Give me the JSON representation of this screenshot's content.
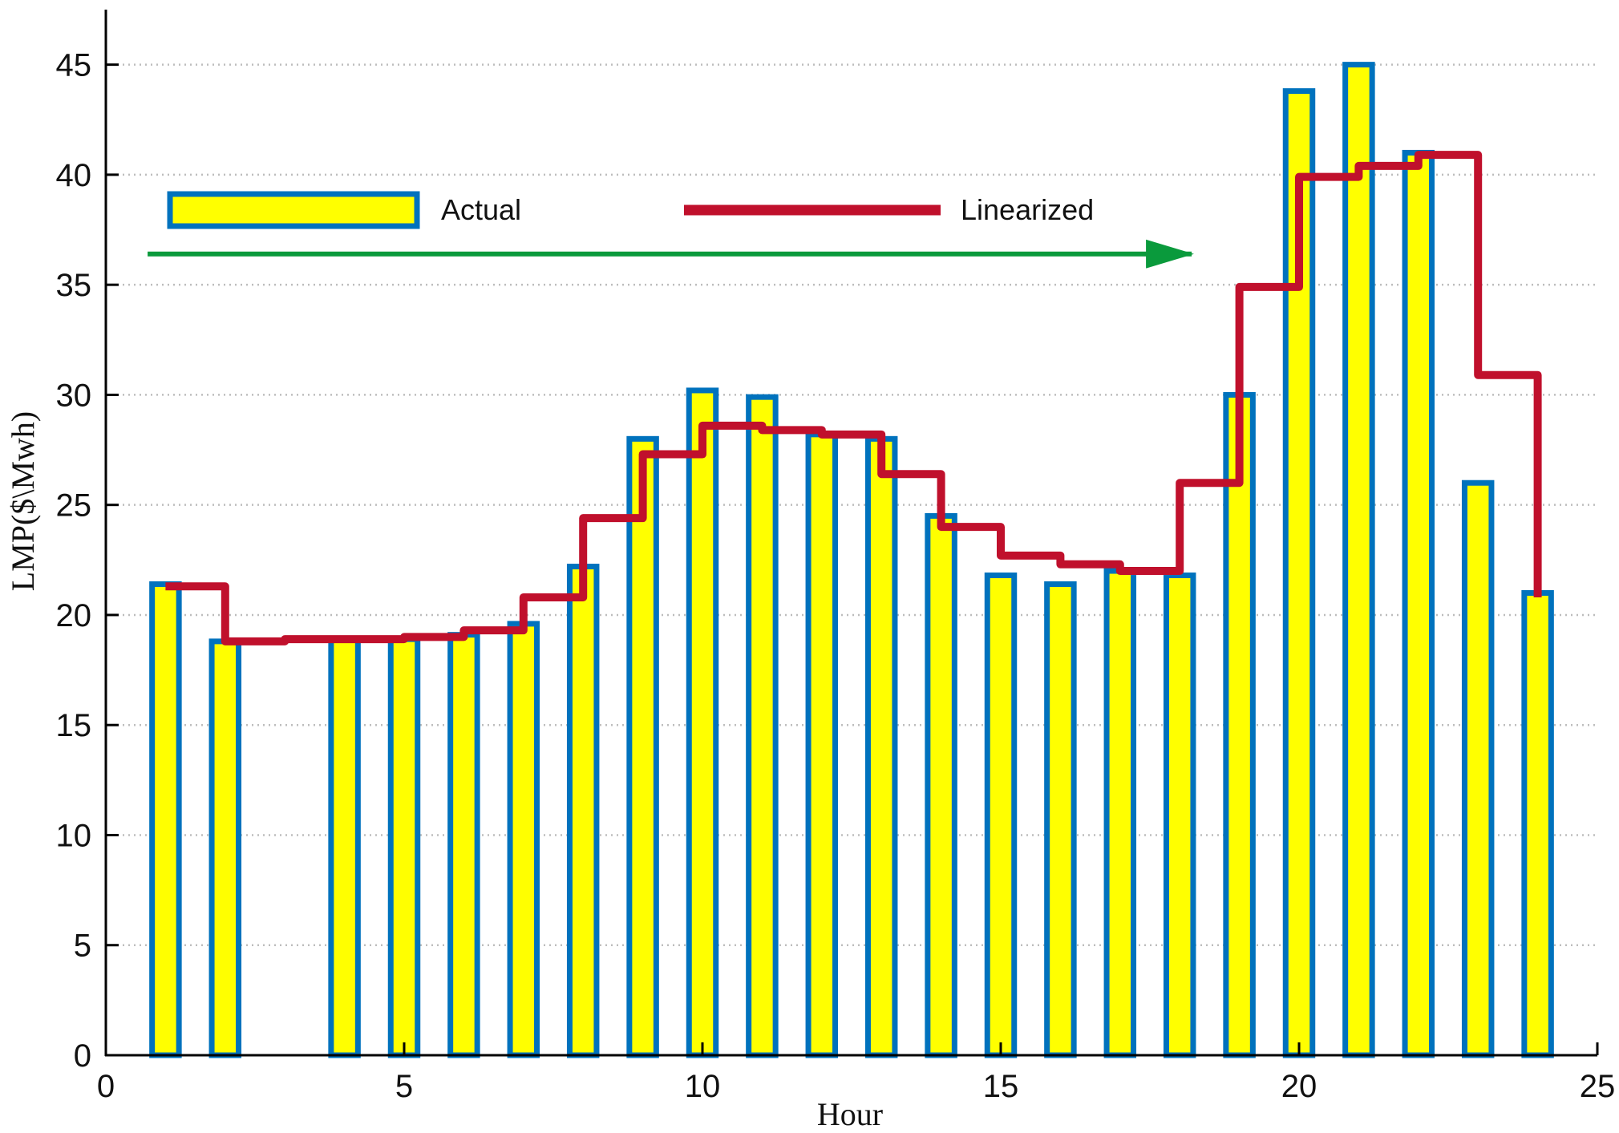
{
  "chart_data": {
    "type": "bar",
    "title": "",
    "xlabel": "Hour",
    "ylabel": "LMP($\\Mwh)",
    "xlim": [
      0,
      25
    ],
    "ylim": [
      0,
      47.5
    ],
    "x_ticks": [
      0,
      5,
      10,
      15,
      20,
      25
    ],
    "y_ticks": [
      0,
      5,
      10,
      15,
      20,
      25,
      30,
      35,
      40,
      45
    ],
    "y_grid": true,
    "legend_position": "top-left",
    "series": [
      {
        "name": "Actual",
        "kind": "bar",
        "fill_color": "#ffff00",
        "edge_color": "#0072bd",
        "x": [
          1,
          2,
          3,
          4,
          5,
          6,
          7,
          8,
          9,
          10,
          11,
          12,
          13,
          14,
          15,
          16,
          17,
          18,
          19,
          20,
          21,
          22,
          23,
          24
        ],
        "values": [
          21.4,
          18.8,
          0,
          18.9,
          18.9,
          19.1,
          19.6,
          22.2,
          28.0,
          30.2,
          29.9,
          28.2,
          28.0,
          24.5,
          21.8,
          21.4,
          22.0,
          21.8,
          30.0,
          43.8,
          45.0,
          41.0,
          26.0,
          21.0
        ]
      },
      {
        "name": "Linearized",
        "kind": "step",
        "color": "#c0102c",
        "x": [
          1,
          2,
          3,
          4,
          5,
          6,
          7,
          8,
          9,
          10,
          11,
          12,
          13,
          14,
          15,
          16,
          17,
          18,
          19,
          20,
          21,
          22,
          23,
          24
        ],
        "values": [
          21.3,
          18.8,
          18.9,
          18.9,
          19.0,
          19.3,
          20.8,
          24.4,
          27.3,
          28.6,
          28.4,
          28.2,
          26.4,
          24.0,
          22.7,
          22.3,
          22.0,
          26.0,
          34.9,
          39.9,
          40.4,
          40.9,
          30.9,
          20.8
        ]
      }
    ],
    "annotations": [
      {
        "type": "arrow",
        "color": "#0a9a3c",
        "x_start": 0.7,
        "x_end": 18.2,
        "y": 36.4
      }
    ]
  }
}
